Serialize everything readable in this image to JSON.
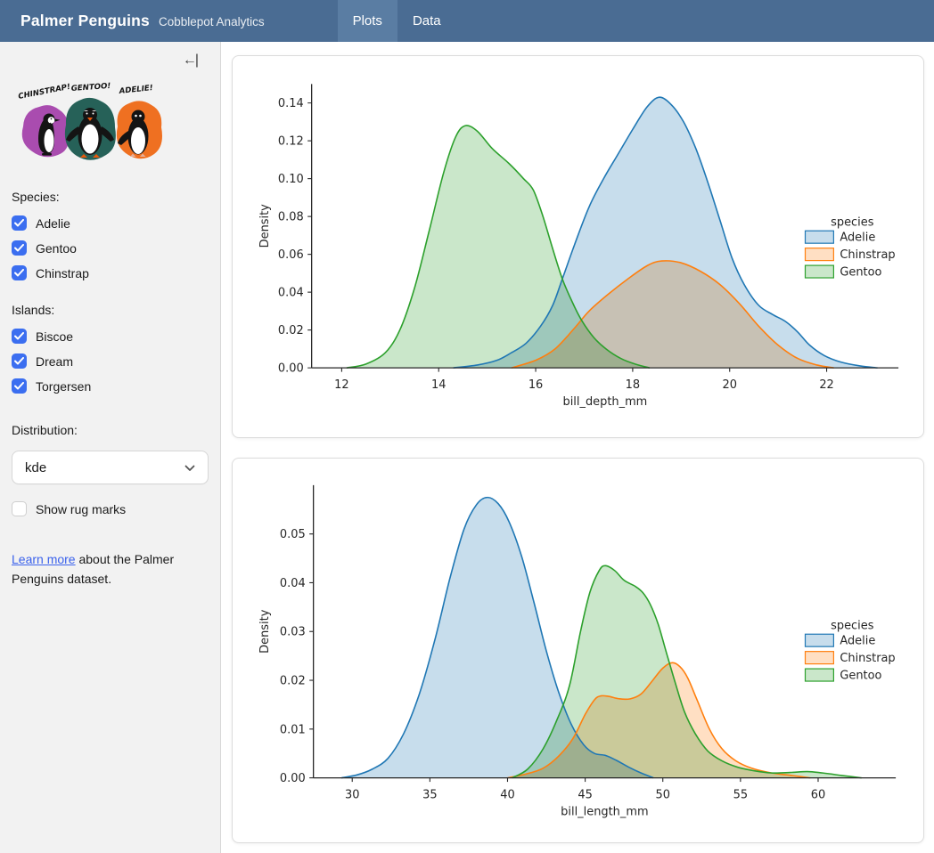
{
  "navbar": {
    "title": "Palmer Penguins",
    "subtitle": "Cobblepot Analytics",
    "tabs": [
      {
        "label": "Plots",
        "active": true
      },
      {
        "label": "Data",
        "active": false
      }
    ]
  },
  "icons": {
    "collapse": "←|"
  },
  "sidebar": {
    "artwork": {
      "labels": [
        "CHINSTRAP!",
        "GENTOO!",
        "ADELIE!"
      ]
    },
    "species": {
      "label": "Species:",
      "options": [
        {
          "label": "Adelie",
          "checked": true
        },
        {
          "label": "Gentoo",
          "checked": true
        },
        {
          "label": "Chinstrap",
          "checked": true
        }
      ]
    },
    "islands": {
      "label": "Islands:",
      "options": [
        {
          "label": "Biscoe",
          "checked": true
        },
        {
          "label": "Dream",
          "checked": true
        },
        {
          "label": "Torgersen",
          "checked": true
        }
      ]
    },
    "distribution": {
      "label": "Distribution:",
      "value": "kde"
    },
    "rug": {
      "label": "Show rug marks",
      "checked": false
    },
    "learn_more": {
      "link_text": "Learn more",
      "rest": " about the Palmer Penguins dataset."
    }
  },
  "colors": {
    "navbar_bg": "#4a6c93",
    "navbar_active": "#5a7da3",
    "accent": "#3b6ef0",
    "link": "#3b62ec",
    "sidebar_bg": "#f2f2f2",
    "card_border": "#dcdcdc",
    "chart_text": "#262626"
  },
  "chart_data": [
    {
      "type": "area",
      "kind": "kde-density",
      "title": "",
      "xlabel": "bill_depth_mm",
      "ylabel": "Density",
      "xlim": [
        11.38,
        23.48
      ],
      "ylim": [
        0,
        0.15
      ],
      "xticks": [
        12,
        14,
        16,
        18,
        20,
        22
      ],
      "yticks": [
        0.0,
        0.02,
        0.04,
        0.06,
        0.08,
        0.1,
        0.12,
        0.14
      ],
      "grid": false,
      "legend_title": "species",
      "legend_position": "center-right",
      "fill_alpha": 0.25,
      "series": [
        {
          "name": "Adelie",
          "color": "#1f77b4",
          "points": [
            [
              14.3,
              0
            ],
            [
              14.8,
              0.0015
            ],
            [
              15.2,
              0.004
            ],
            [
              15.5,
              0.008
            ],
            [
              15.8,
              0.013
            ],
            [
              16.1,
              0.022
            ],
            [
              16.35,
              0.033
            ],
            [
              16.55,
              0.047
            ],
            [
              16.8,
              0.065
            ],
            [
              17.1,
              0.085
            ],
            [
              17.4,
              0.1
            ],
            [
              17.7,
              0.113
            ],
            [
              18.0,
              0.126
            ],
            [
              18.3,
              0.138
            ],
            [
              18.55,
              0.143
            ],
            [
              18.8,
              0.139
            ],
            [
              19.05,
              0.13
            ],
            [
              19.3,
              0.116
            ],
            [
              19.55,
              0.098
            ],
            [
              19.8,
              0.078
            ],
            [
              20.05,
              0.058
            ],
            [
              20.3,
              0.044
            ],
            [
              20.6,
              0.033
            ],
            [
              20.9,
              0.028
            ],
            [
              21.15,
              0.0245
            ],
            [
              21.4,
              0.019
            ],
            [
              21.65,
              0.012
            ],
            [
              21.95,
              0.0065
            ],
            [
              22.3,
              0.003
            ],
            [
              22.7,
              0.001
            ],
            [
              23.05,
              0
            ]
          ]
        },
        {
          "name": "Chinstrap",
          "color": "#ff7f0e",
          "points": [
            [
              15.5,
              0
            ],
            [
              16.0,
              0.004
            ],
            [
              16.4,
              0.01
            ],
            [
              16.8,
              0.021
            ],
            [
              17.1,
              0.03
            ],
            [
              17.5,
              0.039
            ],
            [
              17.9,
              0.047
            ],
            [
              18.3,
              0.054
            ],
            [
              18.6,
              0.0565
            ],
            [
              19.0,
              0.0555
            ],
            [
              19.4,
              0.051
            ],
            [
              19.8,
              0.044
            ],
            [
              20.2,
              0.034
            ],
            [
              20.6,
              0.022
            ],
            [
              21.0,
              0.012
            ],
            [
              21.4,
              0.005
            ],
            [
              21.8,
              0.0015
            ],
            [
              22.15,
              0
            ]
          ]
        },
        {
          "name": "Gentoo",
          "color": "#2ca02c",
          "points": [
            [
              12.1,
              0
            ],
            [
              12.5,
              0.002
            ],
            [
              12.9,
              0.008
            ],
            [
              13.2,
              0.02
            ],
            [
              13.5,
              0.042
            ],
            [
              13.8,
              0.072
            ],
            [
              14.1,
              0.103
            ],
            [
              14.35,
              0.122
            ],
            [
              14.55,
              0.128
            ],
            [
              14.8,
              0.125
            ],
            [
              15.1,
              0.116
            ],
            [
              15.45,
              0.108
            ],
            [
              15.75,
              0.1
            ],
            [
              15.95,
              0.094
            ],
            [
              16.15,
              0.08
            ],
            [
              16.35,
              0.063
            ],
            [
              16.55,
              0.047
            ],
            [
              16.75,
              0.035
            ],
            [
              16.95,
              0.025
            ],
            [
              17.2,
              0.016
            ],
            [
              17.45,
              0.01
            ],
            [
              17.75,
              0.005
            ],
            [
              18.05,
              0.002
            ],
            [
              18.35,
              0
            ]
          ]
        }
      ]
    },
    {
      "type": "area",
      "kind": "kde-density",
      "title": "",
      "xlabel": "bill_length_mm",
      "ylabel": "Density",
      "xlim": [
        27.5,
        65.0
      ],
      "ylim": [
        0,
        0.06
      ],
      "xticks": [
        30,
        35,
        40,
        45,
        50,
        55,
        60
      ],
      "yticks": [
        0.0,
        0.01,
        0.02,
        0.03,
        0.04,
        0.05
      ],
      "grid": false,
      "legend_title": "species",
      "legend_position": "center-right",
      "fill_alpha": 0.25,
      "series": [
        {
          "name": "Adelie",
          "color": "#1f77b4",
          "points": [
            [
              29.3,
              0
            ],
            [
              30.3,
              0.0006
            ],
            [
              31.3,
              0.0018
            ],
            [
              32.3,
              0.004
            ],
            [
              33.3,
              0.009
            ],
            [
              34.3,
              0.017
            ],
            [
              35.3,
              0.028
            ],
            [
              36.3,
              0.041
            ],
            [
              37.2,
              0.051
            ],
            [
              38.0,
              0.056
            ],
            [
              38.7,
              0.0575
            ],
            [
              39.4,
              0.0562
            ],
            [
              40.1,
              0.0525
            ],
            [
              40.9,
              0.0455
            ],
            [
              41.7,
              0.036
            ],
            [
              42.5,
              0.026
            ],
            [
              43.3,
              0.0175
            ],
            [
              44.1,
              0.011
            ],
            [
              44.9,
              0.0068
            ],
            [
              45.6,
              0.005
            ],
            [
              46.3,
              0.0046
            ],
            [
              47.0,
              0.0036
            ],
            [
              47.8,
              0.0022
            ],
            [
              48.6,
              0.001
            ],
            [
              49.4,
              0
            ]
          ]
        },
        {
          "name": "Chinstrap",
          "color": "#ff7f0e",
          "points": [
            [
              40.0,
              0
            ],
            [
              41.2,
              0.0008
            ],
            [
              42.3,
              0.002
            ],
            [
              43.3,
              0.0045
            ],
            [
              44.2,
              0.008
            ],
            [
              45.0,
              0.013
            ],
            [
              45.6,
              0.016
            ],
            [
              46.0,
              0.0168
            ],
            [
              46.5,
              0.0167
            ],
            [
              47.2,
              0.0162
            ],
            [
              47.9,
              0.0162
            ],
            [
              48.6,
              0.0172
            ],
            [
              49.3,
              0.0198
            ],
            [
              50.0,
              0.0225
            ],
            [
              50.6,
              0.0236
            ],
            [
              51.1,
              0.0228
            ],
            [
              51.6,
              0.0205
            ],
            [
              52.2,
              0.016
            ],
            [
              53.0,
              0.01
            ],
            [
              53.8,
              0.006
            ],
            [
              54.7,
              0.0035
            ],
            [
              55.7,
              0.002
            ],
            [
              57.0,
              0.001
            ],
            [
              58.3,
              0.0005
            ],
            [
              59.5,
              0
            ]
          ]
        },
        {
          "name": "Gentoo",
          "color": "#2ca02c",
          "points": [
            [
              40.3,
              0
            ],
            [
              41.3,
              0.0018
            ],
            [
              42.3,
              0.006
            ],
            [
              43.2,
              0.012
            ],
            [
              44.0,
              0.019
            ],
            [
              44.7,
              0.03
            ],
            [
              45.3,
              0.038
            ],
            [
              45.9,
              0.0425
            ],
            [
              46.3,
              0.0435
            ],
            [
              46.9,
              0.0425
            ],
            [
              47.5,
              0.0405
            ],
            [
              48.2,
              0.0393
            ],
            [
              48.7,
              0.038
            ],
            [
              49.2,
              0.0355
            ],
            [
              49.7,
              0.0315
            ],
            [
              50.2,
              0.026
            ],
            [
              50.8,
              0.0195
            ],
            [
              51.4,
              0.0135
            ],
            [
              52.1,
              0.009
            ],
            [
              52.9,
              0.0055
            ],
            [
              53.8,
              0.0035
            ],
            [
              54.8,
              0.0022
            ],
            [
              55.8,
              0.0015
            ],
            [
              57.0,
              0.001
            ],
            [
              58.2,
              0.0011
            ],
            [
              59.3,
              0.0013
            ],
            [
              60.3,
              0.001
            ],
            [
              61.5,
              0.0005
            ],
            [
              62.8,
              0
            ]
          ]
        }
      ]
    }
  ]
}
